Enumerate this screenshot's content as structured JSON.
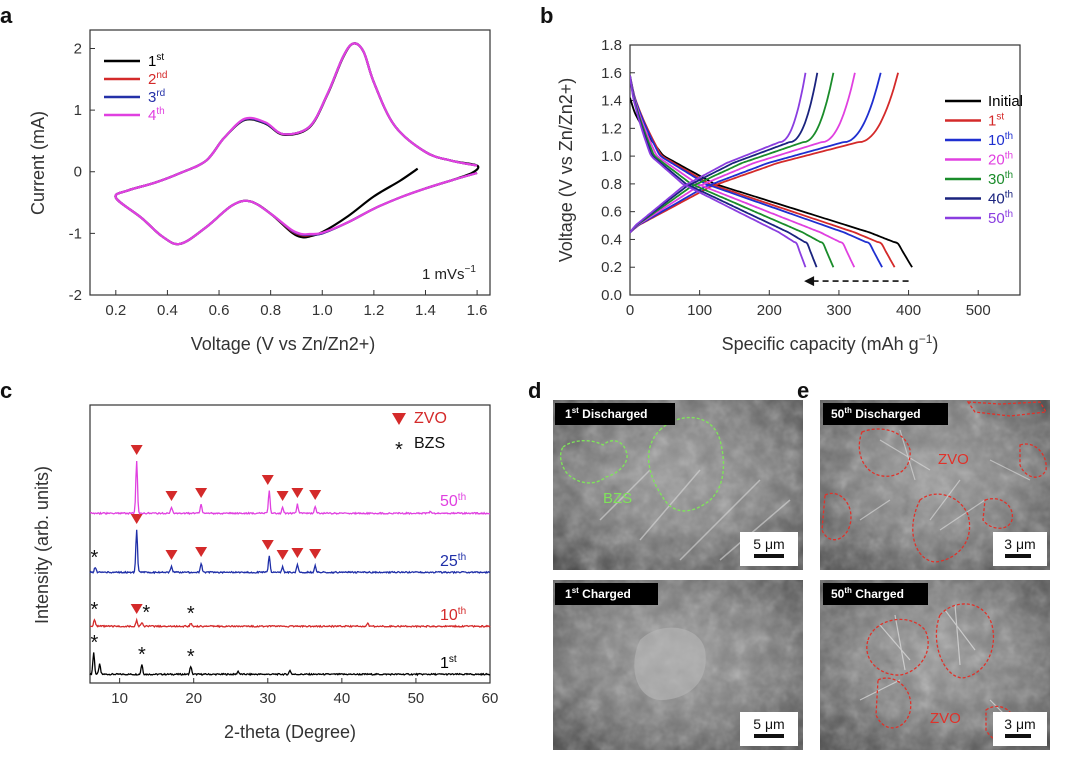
{
  "panels": {
    "a": {
      "letter": "a",
      "chart_data": {
        "type": "line",
        "xlabel": "Voltage (V vs Zn/Zn2+)",
        "ylabel": "Current (mA)",
        "xlim": [
          0.1,
          1.65
        ],
        "ylim": [
          -2,
          2.3
        ],
        "xticks": [
          "0.2",
          "0.4",
          "0.6",
          "0.8",
          "1.0",
          "1.2",
          "1.4",
          "1.6"
        ],
        "yticks": [
          "-2",
          "-1",
          "0",
          "1",
          "2"
        ],
        "annotation": "1 mVs",
        "annotation_sup": "−1",
        "legend_position": "top-left",
        "series": [
          {
            "name": "1",
            "sup": "st",
            "color": "#000000",
            "x": [
              1.37,
              1.3,
              1.2,
              1.1,
              1.0,
              0.95,
              0.92,
              0.88,
              0.8,
              0.72,
              0.65,
              0.55,
              0.45,
              0.38,
              0.3,
              0.2,
              0.25,
              0.35,
              0.45,
              0.55,
              0.62,
              0.7,
              0.78,
              0.85,
              0.95,
              1.02,
              1.08,
              1.12,
              1.16,
              1.2,
              1.28,
              1.4,
              1.5,
              1.6,
              1.58,
              1.5,
              1.4
            ],
            "y": [
              0.05,
              -0.15,
              -0.4,
              -0.72,
              -0.98,
              -1.05,
              -1.06,
              -0.98,
              -0.68,
              -0.48,
              -0.55,
              -0.9,
              -1.17,
              -1.05,
              -0.75,
              -0.42,
              -0.3,
              -0.18,
              -0.02,
              0.18,
              0.55,
              0.84,
              0.78,
              0.6,
              0.72,
              1.25,
              1.85,
              2.08,
              1.95,
              1.45,
              0.75,
              0.32,
              0.18,
              0.1,
              -0.02,
              -0.14,
              -0.27
            ]
          },
          {
            "name": "2",
            "sup": "nd",
            "color": "#d42a2a",
            "x": [
              1.6,
              1.5,
              1.4,
              1.3,
              1.2,
              1.1,
              1.0,
              0.95,
              0.92,
              0.88,
              0.8,
              0.72,
              0.65,
              0.55,
              0.45,
              0.38,
              0.3,
              0.2,
              0.25,
              0.35,
              0.45,
              0.55,
              0.62,
              0.7,
              0.78,
              0.85,
              0.95,
              1.02,
              1.08,
              1.12,
              1.16,
              1.2,
              1.28,
              1.4,
              1.5,
              1.6
            ],
            "y": [
              -0.02,
              -0.14,
              -0.27,
              -0.42,
              -0.6,
              -0.82,
              -1.0,
              -1.03,
              -1.03,
              -0.96,
              -0.68,
              -0.48,
              -0.55,
              -0.9,
              -1.17,
              -1.05,
              -0.75,
              -0.42,
              -0.3,
              -0.18,
              -0.02,
              0.18,
              0.55,
              0.85,
              0.79,
              0.61,
              0.73,
              1.26,
              1.86,
              2.08,
              1.95,
              1.45,
              0.75,
              0.32,
              0.18,
              0.1
            ]
          },
          {
            "name": "3",
            "sup": "rd",
            "color": "#2431a8",
            "x": [
              1.6,
              1.5,
              1.4,
              1.3,
              1.2,
              1.1,
              1.0,
              0.95,
              0.92,
              0.88,
              0.8,
              0.72,
              0.65,
              0.55,
              0.45,
              0.38,
              0.3,
              0.2,
              0.25,
              0.35,
              0.45,
              0.55,
              0.62,
              0.7,
              0.78,
              0.85,
              0.95,
              1.02,
              1.08,
              1.12,
              1.16,
              1.2,
              1.28,
              1.4,
              1.5,
              1.6
            ],
            "y": [
              -0.02,
              -0.14,
              -0.27,
              -0.42,
              -0.6,
              -0.82,
              -1.0,
              -1.02,
              -1.02,
              -0.95,
              -0.68,
              -0.48,
              -0.55,
              -0.9,
              -1.17,
              -1.05,
              -0.75,
              -0.42,
              -0.3,
              -0.18,
              -0.02,
              0.18,
              0.55,
              0.85,
              0.79,
              0.61,
              0.73,
              1.26,
              1.86,
              2.08,
              1.95,
              1.45,
              0.75,
              0.32,
              0.18,
              0.1
            ]
          },
          {
            "name": "4",
            "sup": "th",
            "color": "#e040e0",
            "x": [
              1.6,
              1.5,
              1.4,
              1.3,
              1.2,
              1.1,
              1.0,
              0.95,
              0.92,
              0.88,
              0.8,
              0.72,
              0.65,
              0.55,
              0.45,
              0.38,
              0.3,
              0.2,
              0.25,
              0.35,
              0.45,
              0.55,
              0.62,
              0.7,
              0.78,
              0.85,
              0.95,
              1.02,
              1.08,
              1.12,
              1.16,
              1.2,
              1.28,
              1.4,
              1.5,
              1.6
            ],
            "y": [
              -0.02,
              -0.14,
              -0.27,
              -0.42,
              -0.6,
              -0.82,
              -0.99,
              -1.01,
              -1.01,
              -0.94,
              -0.68,
              -0.48,
              -0.55,
              -0.9,
              -1.17,
              -1.05,
              -0.75,
              -0.42,
              -0.3,
              -0.18,
              -0.02,
              0.18,
              0.55,
              0.86,
              0.8,
              0.61,
              0.73,
              1.26,
              1.86,
              2.08,
              1.95,
              1.45,
              0.75,
              0.32,
              0.18,
              0.1
            ]
          }
        ]
      }
    },
    "b": {
      "letter": "b",
      "chart_data": {
        "type": "line",
        "xlabel": "Specific capacity (mAh g",
        "xlabel_sup": "−1",
        "xlabel_end": ")",
        "ylabel": "Voltage (V vs Zn/Zn2+)",
        "xlim": [
          0,
          560
        ],
        "ylim": [
          0,
          1.8
        ],
        "xticks": [
          "0",
          "100",
          "200",
          "300",
          "400",
          "500"
        ],
        "yticks": [
          "0.0",
          "0.2",
          "0.4",
          "0.6",
          "0.8",
          "1.0",
          "1.2",
          "1.4",
          "1.6",
          "1.8"
        ],
        "legend_position": "right",
        "arrow": {
          "from": [
            400,
            0.1
          ],
          "to": [
            250,
            0.1
          ]
        },
        "series": [
          {
            "name": "Initial",
            "sup": "",
            "color": "#000000",
            "discharge_capacity": 405,
            "charge_capacity": 0
          },
          {
            "name": "1",
            "sup": "st",
            "color": "#d42a2a",
            "discharge_capacity": 380,
            "charge_capacity": 385
          },
          {
            "name": "10",
            "sup": "th",
            "color": "#1f2fd0",
            "discharge_capacity": 362,
            "charge_capacity": 360
          },
          {
            "name": "20",
            "sup": "th",
            "color": "#e040e0",
            "discharge_capacity": 322,
            "charge_capacity": 323
          },
          {
            "name": "30",
            "sup": "th",
            "color": "#1a8c2a",
            "discharge_capacity": 292,
            "charge_capacity": 292
          },
          {
            "name": "40",
            "sup": "th",
            "color": "#1a237e",
            "discharge_capacity": 268,
            "charge_capacity": 269
          },
          {
            "name": "50",
            "sup": "th",
            "color": "#8a3de0",
            "discharge_capacity": 252,
            "charge_capacity": 252
          }
        ]
      }
    },
    "c": {
      "letter": "c",
      "chart_data": {
        "type": "line",
        "xlabel": "2-theta (Degree)",
        "ylabel": "Intensity (arb. units)",
        "xlim": [
          6,
          60
        ],
        "xticks": [
          "10",
          "20",
          "30",
          "40",
          "50",
          "60"
        ],
        "legend": [
          {
            "symbol": "▼",
            "label": "ZVO",
            "color": "#d42a2a"
          },
          {
            "symbol": "*",
            "label": "BZS",
            "color": "#111111"
          }
        ],
        "series": [
          {
            "name": "1",
            "sup": "st",
            "color": "#000000",
            "peaks": [
              {
                "x": 6.5,
                "h": 22
              },
              {
                "x": 7.3,
                "h": 10
              },
              {
                "x": 13.0,
                "h": 10
              },
              {
                "x": 19.6,
                "h": 8
              },
              {
                "x": 26.0,
                "h": 3
              },
              {
                "x": 33.0,
                "h": 4
              }
            ],
            "markers": [
              {
                "x": 6.6,
                "type": "*"
              },
              {
                "x": 13.0,
                "type": "*"
              },
              {
                "x": 19.6,
                "type": "*"
              }
            ]
          },
          {
            "name": "10",
            "sup": "th",
            "color": "#d42a2a",
            "peaks": [
              {
                "x": 6.6,
                "h": 7
              },
              {
                "x": 12.3,
                "h": 6
              },
              {
                "x": 13.0,
                "h": 4
              },
              {
                "x": 19.6,
                "h": 3
              },
              {
                "x": 43.5,
                "h": 3
              }
            ],
            "markers": [
              {
                "x": 6.6,
                "type": "*"
              },
              {
                "x": 12.3,
                "type": "tri"
              },
              {
                "x": 13.6,
                "type": "*"
              },
              {
                "x": 19.6,
                "type": "*"
              }
            ]
          },
          {
            "name": "25",
            "sup": "th",
            "color": "#1f2fa8",
            "peaks": [
              {
                "x": 6.7,
                "h": 5
              },
              {
                "x": 12.3,
                "h": 42
              },
              {
                "x": 17.0,
                "h": 6
              },
              {
                "x": 21.0,
                "h": 9
              },
              {
                "x": 30.2,
                "h": 16
              },
              {
                "x": 32.0,
                "h": 6
              },
              {
                "x": 34.0,
                "h": 8
              },
              {
                "x": 36.4,
                "h": 7
              }
            ],
            "markers": [
              {
                "x": 6.6,
                "type": "*"
              },
              {
                "x": 12.3,
                "type": "tri"
              },
              {
                "x": 17.0,
                "type": "tri"
              },
              {
                "x": 21.0,
                "type": "tri"
              },
              {
                "x": 30.0,
                "type": "tri"
              },
              {
                "x": 32.0,
                "type": "tri"
              },
              {
                "x": 34.0,
                "type": "tri"
              },
              {
                "x": 36.4,
                "type": "tri"
              }
            ]
          },
          {
            "name": "50",
            "sup": "th",
            "color": "#e040e0",
            "peaks": [
              {
                "x": 12.3,
                "h": 52
              },
              {
                "x": 17.0,
                "h": 6
              },
              {
                "x": 21.0,
                "h": 9
              },
              {
                "x": 30.2,
                "h": 22
              },
              {
                "x": 32.0,
                "h": 6
              },
              {
                "x": 34.0,
                "h": 9
              },
              {
                "x": 36.4,
                "h": 7
              },
              {
                "x": 52.0,
                "h": 2
              }
            ],
            "markers": [
              {
                "x": 12.3,
                "type": "tri"
              },
              {
                "x": 17.0,
                "type": "tri"
              },
              {
                "x": 21.0,
                "type": "tri"
              },
              {
                "x": 30.0,
                "type": "tri"
              },
              {
                "x": 32.0,
                "type": "tri"
              },
              {
                "x": 34.0,
                "type": "tri"
              },
              {
                "x": 36.4,
                "type": "tri"
              }
            ]
          }
        ]
      }
    },
    "d": {
      "letter": "d",
      "images": [
        {
          "label": "Discharged",
          "label_num": "1",
          "label_sup": "st",
          "scale": "5 μm",
          "region_label": "BZS",
          "region_color": "#7fe35a"
        },
        {
          "label": "Charged",
          "label_num": "1",
          "label_sup": "st",
          "scale": "5 μm"
        }
      ]
    },
    "e": {
      "letter": "e",
      "images": [
        {
          "label": "Discharged",
          "label_num": "50",
          "label_sup": "th",
          "scale": "3 μm",
          "region_label": "ZVO",
          "region_color": "#e0322a"
        },
        {
          "label": "Charged",
          "label_num": "50",
          "label_sup": "th",
          "scale": "3 μm",
          "region_label": "ZVO",
          "region_color": "#e0322a"
        }
      ]
    }
  }
}
